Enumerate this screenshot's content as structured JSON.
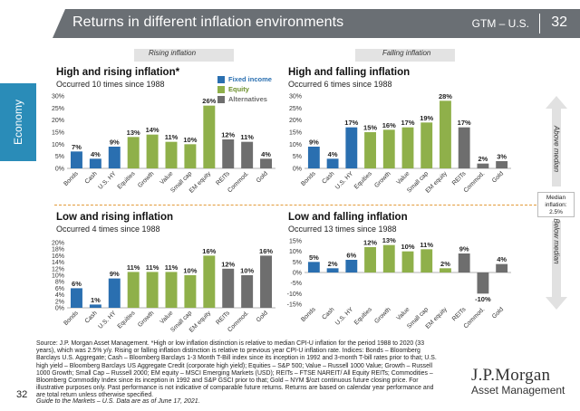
{
  "header": {
    "title": "Returns in different inflation environments",
    "code": "GTM – U.S.",
    "page": "32"
  },
  "side_tab": "Economy",
  "column_labels": {
    "rising": "Rising inflation",
    "falling": "Falling inflation"
  },
  "vertical_labels": {
    "above": "Above median",
    "below": "Below median"
  },
  "median": {
    "line1": "Median",
    "line2": "inflation:",
    "line3": "2.5%"
  },
  "legend": [
    {
      "label": "Fixed income",
      "color": "#2a6fb0"
    },
    {
      "label": "Equity",
      "color": "#8fb04a"
    },
    {
      "label": "Alternatives",
      "color": "#6e6e6e"
    }
  ],
  "chart_data": [
    {
      "type": "bar",
      "title": "High and rising inflation*",
      "subtitle": "Occurred 10 times since 1988",
      "categories": [
        "Bonds",
        "Cash",
        "U.S. HY",
        "Equities",
        "Growth",
        "Value",
        "Small cap",
        "EM equity",
        "REITs",
        "Commod.",
        "Gold"
      ],
      "values": [
        7,
        4,
        9,
        13,
        14,
        11,
        10,
        26,
        12,
        11,
        4
      ],
      "groups": [
        "fixed",
        "fixed",
        "fixed",
        "equity",
        "equity",
        "equity",
        "equity",
        "equity",
        "alt",
        "alt",
        "alt"
      ],
      "ylim": [
        0,
        30
      ],
      "yticks": [
        0,
        5,
        10,
        15,
        20,
        25,
        30
      ]
    },
    {
      "type": "bar",
      "title": "High and falling inflation",
      "subtitle": "Occurred 6 times since 1988",
      "categories": [
        "Bonds",
        "Cash",
        "U.S. HY",
        "Equities",
        "Growth",
        "Value",
        "Small cap",
        "EM equity",
        "REITs",
        "Commod.",
        "Gold"
      ],
      "values": [
        9,
        4,
        17,
        15,
        16,
        17,
        19,
        28,
        17,
        2,
        3
      ],
      "groups": [
        "fixed",
        "fixed",
        "fixed",
        "equity",
        "equity",
        "equity",
        "equity",
        "equity",
        "alt",
        "alt",
        "alt"
      ],
      "ylim": [
        0,
        30
      ],
      "yticks": [
        0,
        5,
        10,
        15,
        20,
        25,
        30
      ]
    },
    {
      "type": "bar",
      "title": "Low and rising inflation",
      "subtitle": "Occurred 4 times since 1988",
      "categories": [
        "Bonds",
        "Cash",
        "U.S. HY",
        "Equities",
        "Growth",
        "Value",
        "Small cap",
        "EM equity",
        "REITs",
        "Commod.",
        "Gold"
      ],
      "values": [
        6,
        1,
        9,
        11,
        11,
        11,
        10,
        16,
        12,
        10,
        16
      ],
      "groups": [
        "fixed",
        "fixed",
        "fixed",
        "equity",
        "equity",
        "equity",
        "equity",
        "equity",
        "alt",
        "alt",
        "alt"
      ],
      "ylim": [
        0,
        20
      ],
      "yticks": [
        0,
        2,
        4,
        6,
        8,
        10,
        12,
        14,
        16,
        18,
        20
      ]
    },
    {
      "type": "bar",
      "title": "Low and falling inflation",
      "subtitle": "Occurred 13 times since 1988",
      "categories": [
        "Bonds",
        "Cash",
        "U.S. HY",
        "Equities",
        "Growth",
        "Value",
        "Small cap",
        "EM equity",
        "REITs",
        "Commod.",
        "Gold"
      ],
      "values": [
        5,
        2,
        6,
        12,
        13,
        10,
        11,
        2,
        9,
        -10,
        4
      ],
      "groups": [
        "fixed",
        "fixed",
        "fixed",
        "equity",
        "equity",
        "equity",
        "equity",
        "equity",
        "alt",
        "alt",
        "alt"
      ],
      "ylim": [
        -15,
        15
      ],
      "yticks": [
        -15,
        -10,
        -5,
        0,
        5,
        10,
        15
      ]
    }
  ],
  "footnote": "Source: J.P. Morgan Asset Management. *High or low inflation distinction is relative to median CPI-U inflation for the period 1988 to 2020 (33 years), which was 2.5% y/y. Rising or falling inflation distinction is relative to previous year CPI-U inflation rate. Indices: Bonds – Bloomberg Barclays U.S. Aggregate; Cash – Bloomberg Barclays 1-3 Month T-Bill index since its inception in 1992 and 3-month T-bill rates prior to that; U.S. high yield – Bloomberg Barclays US Aggregate Credit (corporate high yield); Equities – S&P 500; Value – Russell 1000 Value; Growth – Russell 1000 Growth; Small Cap – Russell 2000; EM equity – MSCI Emerging Markets (USD); REITs – FTSE NAREIT/ All Equity REITs; Commodities – Bloomberg Commodity Index since its inception in 1992 and S&P GSCI prior to that; Gold – NYM $/ozt continuous future closing price. For illustrative purposes only. Past performance is not indicative of comparable future returns. Returns are based on calendar year performance and are total return unless otherwise specified.",
  "guide": "Guide to the Markets – U.S. Data are as of June 17, 2021.",
  "page_number": "32",
  "logo": {
    "top": "J.P.Morgan",
    "bottom": "Asset Management"
  }
}
